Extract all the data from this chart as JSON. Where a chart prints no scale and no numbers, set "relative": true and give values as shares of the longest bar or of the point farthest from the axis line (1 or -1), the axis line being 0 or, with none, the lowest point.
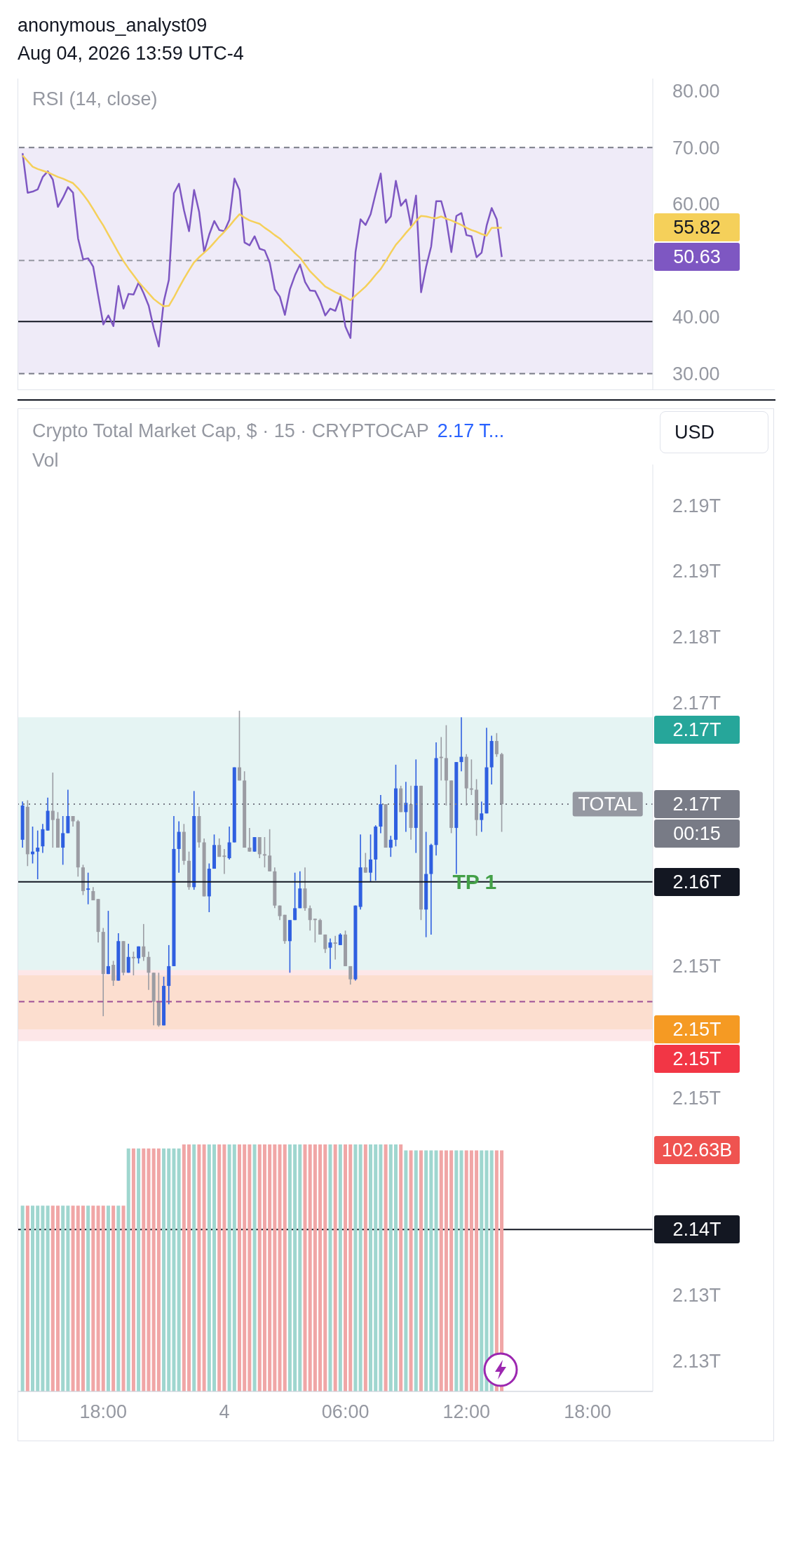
{
  "chart_data": [
    {
      "type": "line",
      "title": "RSI (14, close)",
      "annotations": [
        "anonymous_analyst09",
        "Aug 04, 2026 13:59 UTC-4",
        "50.63",
        "55.82"
      ],
      "categories": [
        null,
        null,
        null,
        null,
        null,
        null,
        null,
        null,
        null,
        null,
        null,
        null,
        null,
        null,
        null,
        null,
        null,
        null,
        null,
        null,
        null,
        null,
        null,
        null,
        null,
        null,
        null,
        null,
        null,
        null,
        null,
        null,
        null,
        null,
        null,
        null,
        null,
        null,
        null,
        null,
        null,
        null,
        null,
        null,
        null,
        null,
        null,
        null,
        null,
        null,
        null,
        null,
        null,
        null,
        null,
        null,
        null,
        null,
        null,
        null,
        null,
        null,
        null,
        null,
        null,
        null,
        null,
        null,
        null,
        null,
        null,
        null,
        null,
        null,
        null,
        null,
        null,
        null,
        null,
        null,
        null,
        null,
        null,
        null,
        null,
        null,
        null,
        null,
        null,
        null,
        null,
        null,
        null,
        null,
        null,
        null
      ],
      "ylim": [
        27.2,
        82.2
      ],
      "yticks": [
        {
          "value": 30,
          "label": "30.00"
        },
        {
          "value": 40,
          "label": "40.00"
        },
        {
          "value": 60,
          "label": "60.00"
        },
        {
          "value": 70,
          "label": "70.00"
        },
        {
          "value": 80,
          "label": "80.00"
        }
      ],
      "tick_labels": "y",
      "series": [
        {
          "color": "#7e57c2",
          "values": [
            69.0,
            62.0,
            62.2,
            62.6,
            64.8,
            65.8,
            64.3,
            59.5,
            61.1,
            63.0,
            62.0,
            53.9,
            50.2,
            50.4,
            48.9,
            43.7,
            38.7,
            40.3,
            38.4,
            45.5,
            41.5,
            44.1,
            44.0,
            46.1,
            44.2,
            42.0,
            38.0,
            34.8,
            42.8,
            46.6,
            61.9,
            63.6,
            58.9,
            55.2,
            62.5,
            58.6,
            51.5,
            54.6,
            57.0,
            55.4,
            55.2,
            57.2,
            64.5,
            62.5,
            53.2,
            52.7,
            54.3,
            52.1,
            51.8,
            49.6,
            44.9,
            43.6,
            40.4,
            44.9,
            47.4,
            49.3,
            46.2,
            44.7,
            44.6,
            42.8,
            40.3,
            41.5,
            41.1,
            43.6,
            38.3,
            36.3,
            51.5,
            57.3,
            56.3,
            58.2,
            61.9,
            65.4,
            56.7,
            57.8,
            64.1,
            59.7,
            60.8,
            56.2,
            61.5,
            44.4,
            48.9,
            52.5,
            60.5,
            60.5,
            57.2,
            51.5,
            57.9,
            58.4,
            54.5,
            54.3,
            50.6,
            51.4,
            56.2,
            59.3,
            57.3,
            50.63
          ]
        },
        {
          "color": "#f5d05a",
          "values": [
            68.6,
            67.6,
            66.6,
            66.2,
            65.9,
            65.6,
            65.2,
            64.8,
            64.5,
            64.1,
            63.7,
            62.8,
            61.7,
            60.5,
            59.1,
            57.6,
            56.2,
            54.6,
            53.0,
            51.4,
            49.9,
            48.6,
            47.4,
            46.2,
            45.2,
            44.2,
            43.2,
            42.5,
            41.9,
            42.0,
            43.5,
            45.2,
            46.8,
            48.3,
            49.7,
            50.6,
            51.4,
            52.2,
            53.2,
            54.2,
            55.1,
            56.1,
            57.2,
            58.2,
            57.6,
            57.1,
            56.8,
            56.5,
            55.8,
            55.2,
            54.5,
            53.9,
            53.0,
            52.2,
            51.3,
            50.5,
            49.3,
            48.1,
            47.2,
            46.3,
            45.4,
            44.9,
            44.4,
            44.0,
            43.5,
            43.0,
            43.8,
            44.6,
            45.4,
            46.4,
            47.5,
            48.5,
            49.9,
            51.4,
            52.8,
            53.8,
            54.9,
            55.9,
            57.0,
            57.9,
            57.8,
            57.6,
            57.5,
            57.8,
            57.4,
            57.1,
            56.7,
            56.3,
            55.8,
            55.4,
            55.1,
            54.7,
            54.4,
            55.8,
            55.8,
            55.82
          ]
        }
      ],
      "bands": [
        {
          "axis": "y",
          "from": 30,
          "to": 70,
          "label": null,
          "color": "#7e57c2"
        }
      ],
      "ref_lines": [
        {
          "axis": "y",
          "value": 70,
          "label": null,
          "color": "#787b86",
          "line_style": "dashed"
        },
        {
          "axis": "y",
          "value": 50,
          "label": null,
          "color": "#9598a1",
          "line_style": "dashed"
        },
        {
          "axis": "y",
          "value": 30,
          "label": null,
          "color": "#787b86",
          "line_style": "dashed"
        },
        {
          "axis": "y",
          "value": 39.2,
          "label": null,
          "color": "#131722",
          "line_style": "solid"
        }
      ]
    },
    {
      "type": "candlestick",
      "title": "Crypto Total Market Cap, $ · 15 · CRYPTOCAP",
      "subtitle": "2.17 T...",
      "annotations": [
        "USD",
        "Vol",
        {
          "text": "TP 1",
          "x": "2026-08-04T12:24",
          "y": 2.1614
        },
        {
          "text": "TOTAL",
          "x": "2026-08-04T19:00",
          "y": 2.1673
        },
        {
          "text": "00:15",
          "x": "2026-08-04T21:14",
          "y": 2.1666
        }
      ],
      "x": [
        "2026-08-03T14:00",
        "2026-08-03T14:15",
        "2026-08-03T14:30",
        "2026-08-03T14:45",
        "2026-08-03T15:00",
        "2026-08-03T15:15",
        "2026-08-03T15:30",
        "2026-08-03T15:45",
        "2026-08-03T16:00",
        "2026-08-03T16:15",
        "2026-08-03T16:30",
        "2026-08-03T16:45",
        "2026-08-03T17:00",
        "2026-08-03T17:15",
        "2026-08-03T17:30",
        "2026-08-03T17:45",
        "2026-08-03T18:00",
        "2026-08-03T18:15",
        "2026-08-03T18:30",
        "2026-08-03T18:45",
        "2026-08-03T19:00",
        "2026-08-03T19:15",
        "2026-08-03T19:30",
        "2026-08-03T19:45",
        "2026-08-03T20:00",
        "2026-08-03T20:15",
        "2026-08-03T20:30",
        "2026-08-03T20:45",
        "2026-08-03T21:00",
        "2026-08-03T21:15",
        "2026-08-03T21:30",
        "2026-08-03T21:45",
        "2026-08-03T22:00",
        "2026-08-03T22:15",
        "2026-08-03T22:30",
        "2026-08-03T22:45",
        "2026-08-03T23:00",
        "2026-08-03T23:15",
        "2026-08-03T23:30",
        "2026-08-03T23:45",
        "2026-08-04T00:00",
        "2026-08-04T00:15",
        "2026-08-04T00:30",
        "2026-08-04T00:45",
        "2026-08-04T01:00",
        "2026-08-04T01:15",
        "2026-08-04T01:30",
        "2026-08-04T01:45",
        "2026-08-04T02:00",
        "2026-08-04T02:15",
        "2026-08-04T02:30",
        "2026-08-04T02:45",
        "2026-08-04T03:00",
        "2026-08-04T03:15",
        "2026-08-04T03:30",
        "2026-08-04T03:45",
        "2026-08-04T04:00",
        "2026-08-04T04:15",
        "2026-08-04T04:30",
        "2026-08-04T04:45",
        "2026-08-04T05:00",
        "2026-08-04T05:15",
        "2026-08-04T05:30",
        "2026-08-04T05:45",
        "2026-08-04T06:00",
        "2026-08-04T06:15",
        "2026-08-04T06:30",
        "2026-08-04T06:45",
        "2026-08-04T07:00",
        "2026-08-04T07:15",
        "2026-08-04T07:30",
        "2026-08-04T07:45",
        "2026-08-04T08:00",
        "2026-08-04T08:15",
        "2026-08-04T08:30",
        "2026-08-04T08:45",
        "2026-08-04T09:00",
        "2026-08-04T09:15",
        "2026-08-04T09:30",
        "2026-08-04T09:45",
        "2026-08-04T10:00",
        "2026-08-04T10:15",
        "2026-08-04T10:30",
        "2026-08-04T10:45",
        "2026-08-04T11:00",
        "2026-08-04T11:15",
        "2026-08-04T11:30",
        "2026-08-04T11:45",
        "2026-08-04T12:00",
        "2026-08-04T12:15",
        "2026-08-04T12:30",
        "2026-08-04T12:45",
        "2026-08-04T13:00",
        "2026-08-04T13:15",
        "2026-08-04T13:30",
        "2026-08-04T13:45"
      ],
      "ohlc": [
        [
          2.1646,
          2.1675,
          2.164,
          2.1672
        ],
        [
          2.1671,
          2.1676,
          2.1626,
          2.1635
        ],
        [
          2.1635,
          2.1656,
          2.1628,
          2.1637
        ],
        [
          2.1637,
          2.1653,
          2.1616,
          2.164
        ],
        [
          2.1641,
          2.1658,
          2.1636,
          2.1654
        ],
        [
          2.1653,
          2.1678,
          2.1653,
          2.1668
        ],
        [
          2.1668,
          2.1697,
          2.164,
          2.1661
        ],
        [
          2.1662,
          2.1667,
          2.164,
          2.164
        ],
        [
          2.164,
          2.1664,
          2.1627,
          2.1651
        ],
        [
          2.1651,
          2.1684,
          2.1651,
          2.1664
        ],
        [
          2.1664,
          2.1664,
          2.1656,
          2.166
        ],
        [
          2.166,
          2.1661,
          2.1618,
          2.1625
        ],
        [
          2.1625,
          2.1627,
          2.1604,
          2.1607
        ],
        [
          2.1608,
          2.1621,
          2.1597,
          2.1609
        ],
        [
          2.1607,
          2.161,
          2.16,
          2.16
        ],
        [
          2.1601,
          2.1601,
          2.1568,
          2.1576
        ],
        [
          2.1576,
          2.1579,
          2.1512,
          2.1544
        ],
        [
          2.1544,
          2.1592,
          2.1544,
          2.155
        ],
        [
          2.1551,
          2.1554,
          2.1535,
          2.1539
        ],
        [
          2.1539,
          2.1575,
          2.1539,
          2.1569
        ],
        [
          2.1569,
          2.1569,
          2.1543,
          2.1545
        ],
        [
          2.1545,
          2.1567,
          2.1545,
          2.1557
        ],
        [
          2.1557,
          2.1561,
          2.1543,
          2.1556
        ],
        [
          2.1556,
          2.1565,
          2.1552,
          2.1565
        ],
        [
          2.1565,
          2.1582,
          2.1554,
          2.1557
        ],
        [
          2.1557,
          2.1561,
          2.1532,
          2.1545
        ],
        [
          2.1545,
          2.1545,
          2.1505,
          2.1523
        ],
        [
          2.1523,
          2.1545,
          2.1504,
          2.1505
        ],
        [
          2.1505,
          2.1542,
          2.1505,
          2.1535
        ],
        [
          2.1535,
          2.1566,
          2.1521,
          2.155
        ],
        [
          2.155,
          2.1664,
          2.155,
          2.1639
        ],
        [
          2.1639,
          2.166,
          2.1621,
          2.1652
        ],
        [
          2.1652,
          2.1658,
          2.1627,
          2.163
        ],
        [
          2.163,
          2.1637,
          2.1608,
          2.161
        ],
        [
          2.161,
          2.1683,
          2.1608,
          2.1664
        ],
        [
          2.1664,
          2.1671,
          2.164,
          2.1644
        ],
        [
          2.1644,
          2.1647,
          2.1603,
          2.1603
        ],
        [
          2.1603,
          2.1628,
          2.1591,
          2.1624
        ],
        [
          2.1624,
          2.165,
          2.1624,
          2.1642
        ],
        [
          2.1642,
          2.1647,
          2.1633,
          2.1633
        ],
        [
          2.1634,
          2.1639,
          2.162,
          2.1633
        ],
        [
          2.1632,
          2.1656,
          2.1631,
          2.1644
        ],
        [
          2.1644,
          2.1701,
          2.1644,
          2.1701
        ],
        [
          2.1701,
          2.1744,
          2.1691,
          2.1691
        ],
        [
          2.1691,
          2.1698,
          2.164,
          2.164
        ],
        [
          2.164,
          2.1655,
          2.1637,
          2.1637
        ],
        [
          2.1637,
          2.1648,
          2.1637,
          2.1648
        ],
        [
          2.1648,
          2.1648,
          2.1632,
          2.1635
        ],
        [
          2.1635,
          2.1648,
          2.1625,
          2.1634
        ],
        [
          2.1634,
          2.1654,
          2.1622,
          2.1622
        ],
        [
          2.1622,
          2.1625,
          2.1594,
          2.1596
        ],
        [
          2.1596,
          2.1596,
          2.1585,
          2.1588
        ],
        [
          2.1589,
          2.1589,
          2.1567,
          2.1569
        ],
        [
          2.1569,
          2.1585,
          2.1545,
          2.1585
        ],
        [
          2.1585,
          2.1621,
          2.1585,
          2.1594
        ],
        [
          2.1594,
          2.1622,
          2.1594,
          2.1609
        ],
        [
          2.1609,
          2.1625,
          2.1592,
          2.1594
        ],
        [
          2.1594,
          2.1596,
          2.1577,
          2.1585
        ],
        [
          2.1586,
          2.1586,
          2.1568,
          2.1585
        ],
        [
          2.1585,
          2.1586,
          2.1574,
          2.1574
        ],
        [
          2.1574,
          2.1574,
          2.156,
          2.1563
        ],
        [
          2.1564,
          2.1571,
          2.1548,
          2.1568
        ],
        [
          2.1568,
          2.1573,
          2.1555,
          2.1567
        ],
        [
          2.1566,
          2.1575,
          2.1566,
          2.1574
        ],
        [
          2.1574,
          2.1577,
          2.155,
          2.155
        ],
        [
          2.155,
          2.155,
          2.1536,
          2.154
        ],
        [
          2.154,
          2.1596,
          2.1539,
          2.1596
        ],
        [
          2.1595,
          2.165,
          2.1593,
          2.1625
        ],
        [
          2.1625,
          2.1636,
          2.1621,
          2.1621
        ],
        [
          2.1621,
          2.165,
          2.1614,
          2.1631
        ],
        [
          2.1631,
          2.1657,
          2.1615,
          2.1656
        ],
        [
          2.1656,
          2.168,
          2.1651,
          2.1673
        ],
        [
          2.1673,
          2.1673,
          2.164,
          2.164
        ],
        [
          2.164,
          2.1649,
          2.1633,
          2.1646
        ],
        [
          2.1646,
          2.1703,
          2.1641,
          2.1685
        ],
        [
          2.1685,
          2.1687,
          2.1667,
          2.1667
        ],
        [
          2.1667,
          2.169,
          2.1652,
          2.1674
        ],
        [
          2.1673,
          2.1687,
          2.1646,
          2.1655
        ],
        [
          2.1655,
          2.1707,
          2.1636,
          2.1687
        ],
        [
          2.1687,
          2.1687,
          2.1585,
          2.1593
        ],
        [
          2.1593,
          2.1652,
          2.1572,
          2.162
        ],
        [
          2.162,
          2.1643,
          2.1574,
          2.1642
        ],
        [
          2.1642,
          2.172,
          2.1634,
          2.1708
        ],
        [
          2.1709,
          2.1724,
          2.1691,
          2.1708
        ],
        [
          2.1708,
          2.1733,
          2.1672,
          2.1691
        ],
        [
          2.1691,
          2.1691,
          2.1651,
          2.1655
        ],
        [
          2.1655,
          2.1705,
          2.162,
          2.1705
        ],
        [
          2.1705,
          2.1739,
          2.1698,
          2.1709
        ],
        [
          2.1709,
          2.1711,
          2.1672,
          2.1685
        ],
        [
          2.1685,
          2.1707,
          2.168,
          2.1684
        ],
        [
          2.1684,
          2.1692,
          2.1649,
          2.1661
        ],
        [
          2.1661,
          2.1675,
          2.1652,
          2.1666
        ],
        [
          2.1666,
          2.1731,
          2.1666,
          2.1701
        ],
        [
          2.1701,
          2.1725,
          2.1688,
          2.1721
        ],
        [
          2.1721,
          2.1727,
          2.1709,
          2.1711
        ],
        [
          2.1711,
          2.1712,
          2.1652,
          2.1673
        ]
      ],
      "colors": [
        "#2f5fe0",
        "#9b9ca3",
        "#2f5fe0",
        "#2f5fe0",
        "#2f5fe0",
        "#2f5fe0",
        "#9b9ca3",
        "#9b9ca3",
        "#2f5fe0",
        "#2f5fe0",
        "#9b9ca3",
        "#9b9ca3",
        "#9b9ca3",
        "#2f5fe0",
        "#9b9ca3",
        "#9b9ca3",
        "#9b9ca3",
        "#2f5fe0",
        "#9b9ca3",
        "#2f5fe0",
        "#9b9ca3",
        "#2f5fe0",
        "#9b9ca3",
        "#2f5fe0",
        "#9b9ca3",
        "#9b9ca3",
        "#9b9ca3",
        "#9b9ca3",
        "#2f5fe0",
        "#2f5fe0",
        "#2f5fe0",
        "#2f5fe0",
        "#9b9ca3",
        "#9b9ca3",
        "#2f5fe0",
        "#9b9ca3",
        "#9b9ca3",
        "#2f5fe0",
        "#2f5fe0",
        "#9b9ca3",
        "#9b9ca3",
        "#2f5fe0",
        "#2f5fe0",
        "#9b9ca3",
        "#9b9ca3",
        "#9b9ca3",
        "#2f5fe0",
        "#9b9ca3",
        "#9b9ca3",
        "#9b9ca3",
        "#9b9ca3",
        "#9b9ca3",
        "#9b9ca3",
        "#2f5fe0",
        "#2f5fe0",
        "#2f5fe0",
        "#9b9ca3",
        "#9b9ca3",
        "#9b9ca3",
        "#9b9ca3",
        "#9b9ca3",
        "#2f5fe0",
        "#9b9ca3",
        "#2f5fe0",
        "#9b9ca3",
        "#9b9ca3",
        "#2f5fe0",
        "#2f5fe0",
        "#9b9ca3",
        "#2f5fe0",
        "#2f5fe0",
        "#2f5fe0",
        "#9b9ca3",
        "#2f5fe0",
        "#2f5fe0",
        "#9b9ca3",
        "#2f5fe0",
        "#9b9ca3",
        "#2f5fe0",
        "#9b9ca3",
        "#2f5fe0",
        "#2f5fe0",
        "#2f5fe0",
        "#9b9ca3",
        "#9b9ca3",
        "#9b9ca3",
        "#2f5fe0",
        "#2f5fe0",
        "#9b9ca3",
        "#9b9ca3",
        "#9b9ca3",
        "#2f5fe0",
        "#2f5fe0",
        "#2f5fe0",
        "#9b9ca3",
        "#9b9ca3"
      ],
      "xlim": [
        "2026-08-03T13:47",
        "2026-08-04T21:14"
      ],
      "ylim": [
        2.1227,
        2.1931
      ],
      "xticks": [
        {
          "value": "2026-08-03T18:00",
          "label": "18:00"
        },
        {
          "value": "2026-08-04T00:00",
          "label": "4"
        },
        {
          "value": "2026-08-04T06:00",
          "label": "06:00"
        },
        {
          "value": "2026-08-04T12:00",
          "label": "12:00"
        },
        {
          "value": "2026-08-04T18:00",
          "label": "18:00"
        }
      ],
      "yticks": [
        {
          "value": 2.125,
          "label": "2.13T"
        },
        {
          "value": 2.13,
          "label": "2.13T"
        },
        {
          "value": 2.145,
          "label": "2.15T"
        },
        {
          "value": 2.155,
          "label": "2.15T"
        },
        {
          "value": 2.175,
          "label": "2.17T"
        },
        {
          "value": 2.18,
          "label": "2.18T"
        },
        {
          "value": 2.185,
          "label": "2.19T"
        },
        {
          "value": 2.19,
          "label": "2.19T"
        }
      ],
      "bands": [
        {
          "axis": "y",
          "from": 2.1547,
          "to": 2.1739,
          "label": "2.17T",
          "color": "#26a69a"
        },
        {
          "axis": "y",
          "from": 2.1547,
          "to": 2.1493,
          "label": "2.15T",
          "color": "#f23645"
        },
        {
          "axis": "y",
          "from": 2.1543,
          "to": 2.1502,
          "label": "2.15T",
          "color": "#f59a23"
        }
      ],
      "ref_lines": [
        {
          "axis": "y",
          "value": 2.1673,
          "label": "2.17T",
          "color": "#787b86",
          "line_style": "dotted"
        },
        {
          "axis": "y",
          "value": 2.1614,
          "label": "2.16T",
          "color": "#131722",
          "line_style": "solid"
        },
        {
          "axis": "y",
          "value": 2.1523,
          "label": null,
          "color": "#9c4f96",
          "line_style": "dashed"
        },
        {
          "axis": "y",
          "value": 2.135,
          "label": "2.14T",
          "color": "#131722",
          "line_style": "solid"
        }
      ]
    },
    {
      "type": "bar",
      "relative": true,
      "tick_labels": false,
      "annotations": [
        "102.63B"
      ],
      "categories": [
        null,
        null,
        null,
        null,
        null,
        null,
        null,
        null,
        null,
        null,
        null,
        null,
        null,
        null,
        null,
        null,
        null,
        null,
        null,
        null,
        null,
        null,
        null,
        null,
        null,
        null,
        null,
        null,
        null,
        null,
        null,
        null,
        null,
        null,
        null,
        null,
        null,
        null,
        null,
        null,
        null,
        null,
        null,
        null,
        null,
        null,
        null,
        null,
        null,
        null,
        null,
        null,
        null,
        null,
        null,
        null,
        null,
        null,
        null,
        null,
        null,
        null,
        null,
        null,
        null,
        null,
        null,
        null,
        null,
        null,
        null,
        null,
        null,
        null,
        null,
        null,
        null,
        null,
        null,
        null,
        null,
        null,
        null,
        null,
        null,
        null,
        null,
        null,
        null,
        null,
        null,
        null,
        null,
        null,
        null,
        null
      ],
      "values": [
        0.752,
        0.752,
        0.752,
        0.752,
        0.752,
        0.752,
        0.752,
        0.752,
        0.752,
        0.752,
        0.752,
        0.752,
        0.752,
        0.752,
        0.752,
        0.752,
        0.752,
        0.752,
        0.752,
        0.752,
        0.752,
        0.984,
        0.984,
        0.984,
        0.984,
        0.984,
        0.984,
        0.984,
        0.984,
        0.984,
        0.984,
        0.984,
        1,
        1,
        1,
        1,
        1,
        1,
        1,
        1,
        1,
        1,
        1,
        1,
        1,
        1,
        1,
        1,
        1,
        1,
        1,
        1,
        1,
        1,
        1,
        1,
        1,
        1,
        1,
        1,
        1,
        1,
        1,
        1,
        1,
        1,
        1,
        1,
        1,
        1,
        1,
        1,
        1,
        1,
        1,
        1,
        0.976,
        0.976,
        0.976,
        0.976,
        0.976,
        0.976,
        0.976,
        0.976,
        0.976,
        0.976,
        0.976,
        0.976,
        0.976,
        0.976,
        0.976,
        0.976,
        0.976,
        0.976,
        0.976,
        0.976
      ],
      "colors": [
        "#9fd6cf",
        "#f0a6a6",
        "#9fd6cf",
        "#9fd6cf",
        "#9fd6cf",
        "#9fd6cf",
        "#f0a6a6",
        "#f0a6a6",
        "#9fd6cf",
        "#9fd6cf",
        "#f0a6a6",
        "#f0a6a6",
        "#f0a6a6",
        "#9fd6cf",
        "#f0a6a6",
        "#f0a6a6",
        "#f0a6a6",
        "#9fd6cf",
        "#f0a6a6",
        "#9fd6cf",
        "#f0a6a6",
        "#9fd6cf",
        "#f0a6a6",
        "#9fd6cf",
        "#f0a6a6",
        "#f0a6a6",
        "#f0a6a6",
        "#f0a6a6",
        "#9fd6cf",
        "#9fd6cf",
        "#9fd6cf",
        "#9fd6cf",
        "#f0a6a6",
        "#f0a6a6",
        "#9fd6cf",
        "#f0a6a6",
        "#f0a6a6",
        "#9fd6cf",
        "#9fd6cf",
        "#f0a6a6",
        "#f0a6a6",
        "#9fd6cf",
        "#9fd6cf",
        "#f0a6a6",
        "#f0a6a6",
        "#f0a6a6",
        "#9fd6cf",
        "#f0a6a6",
        "#f0a6a6",
        "#f0a6a6",
        "#f0a6a6",
        "#f0a6a6",
        "#f0a6a6",
        "#9fd6cf",
        "#9fd6cf",
        "#9fd6cf",
        "#f0a6a6",
        "#f0a6a6",
        "#f0a6a6",
        "#f0a6a6",
        "#f0a6a6",
        "#9fd6cf",
        "#f0a6a6",
        "#9fd6cf",
        "#f0a6a6",
        "#f0a6a6",
        "#9fd6cf",
        "#9fd6cf",
        "#f0a6a6",
        "#9fd6cf",
        "#9fd6cf",
        "#9fd6cf",
        "#f0a6a6",
        "#9fd6cf",
        "#9fd6cf",
        "#f0a6a6",
        "#9fd6cf",
        "#f0a6a6",
        "#9fd6cf",
        "#f0a6a6",
        "#9fd6cf",
        "#9fd6cf",
        "#9fd6cf",
        "#f0a6a6",
        "#f0a6a6",
        "#f0a6a6",
        "#9fd6cf",
        "#9fd6cf",
        "#f0a6a6",
        "#f0a6a6",
        "#f0a6a6",
        "#9fd6cf",
        "#9fd6cf",
        "#9fd6cf",
        "#f0a6a6",
        "#f0a6a6"
      ]
    }
  ]
}
